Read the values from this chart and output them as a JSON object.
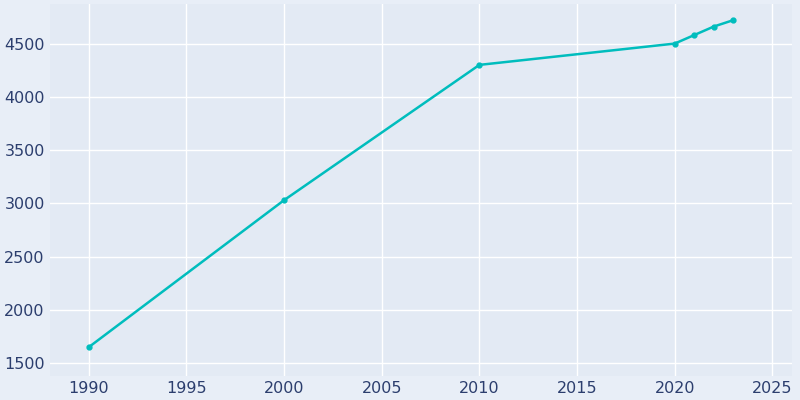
{
  "years": [
    1990,
    2000,
    2010,
    2020,
    2021,
    2022,
    2023
  ],
  "population": [
    1650,
    3030,
    4300,
    4500,
    4580,
    4660,
    4720
  ],
  "line_color": "#00BDBD",
  "marker": "o",
  "marker_size": 3.5,
  "line_width": 1.8,
  "axes_facecolor": "#E3EAF4",
  "fig_facecolor": "#E8EEF7",
  "xlim": [
    1988,
    2026
  ],
  "ylim": [
    1380,
    4870
  ],
  "xticks": [
    1990,
    1995,
    2000,
    2005,
    2010,
    2015,
    2020,
    2025
  ],
  "yticks": [
    1500,
    2000,
    2500,
    3000,
    3500,
    4000,
    4500
  ],
  "tick_label_color": "#2C3E6E",
  "tick_fontsize": 11.5,
  "grid_color": "#FFFFFF",
  "grid_linewidth": 1.0
}
